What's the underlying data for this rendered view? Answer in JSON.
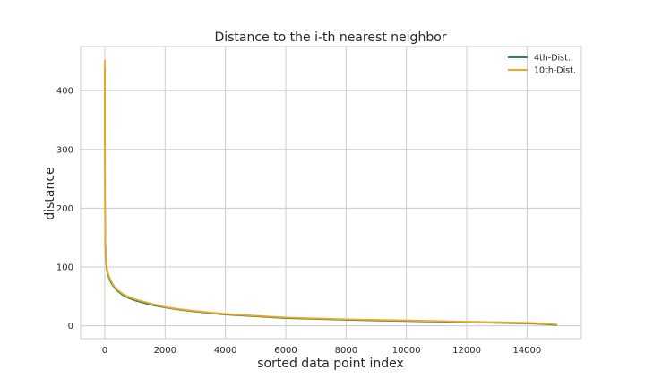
{
  "chart_data": {
    "type": "line",
    "title": "Distance to the i-th nearest neighbor",
    "xlabel": "sorted data point index",
    "ylabel": "distance",
    "xlim": [
      -800,
      15800
    ],
    "ylim": [
      -22,
      475
    ],
    "x_ticks": [
      0,
      2000,
      4000,
      6000,
      8000,
      10000,
      12000,
      14000
    ],
    "y_ticks": [
      0,
      100,
      200,
      300,
      400
    ],
    "grid": true,
    "legend_position": "top-right",
    "series": [
      {
        "name": "4th-Dist.",
        "color": "#2e8b57",
        "x": [
          0,
          5,
          10,
          20,
          40,
          60,
          100,
          150,
          200,
          300,
          400,
          600,
          800,
          1000,
          1500,
          2000,
          2500,
          3000,
          4000,
          5000,
          6000,
          7000,
          8000,
          9000,
          10000,
          11000,
          12000,
          13000,
          14000,
          14500,
          14800,
          15000
        ],
        "values": [
          440,
          300,
          200,
          140,
          110,
          98,
          88,
          80,
          74,
          66,
          60,
          52,
          47,
          43,
          36,
          31,
          27,
          24,
          19,
          16,
          13,
          11.5,
          10,
          9,
          8,
          7,
          6,
          5,
          4,
          3,
          2,
          1
        ]
      },
      {
        "name": "10th-Dist.",
        "color": "#f5a623",
        "x": [
          0,
          5,
          10,
          20,
          40,
          60,
          100,
          150,
          200,
          300,
          400,
          600,
          800,
          1000,
          1500,
          2000,
          2500,
          3000,
          4000,
          5000,
          6000,
          7000,
          8000,
          9000,
          10000,
          11000,
          12000,
          13000,
          14000,
          14500,
          14800,
          15000
        ],
        "values": [
          452,
          310,
          205,
          145,
          115,
          102,
          91,
          83,
          77,
          68,
          62,
          54,
          49,
          45,
          38,
          32,
          28,
          25,
          20,
          17,
          14,
          12.5,
          11,
          10,
          9,
          8,
          7,
          6,
          5,
          4,
          3,
          2
        ]
      }
    ]
  }
}
